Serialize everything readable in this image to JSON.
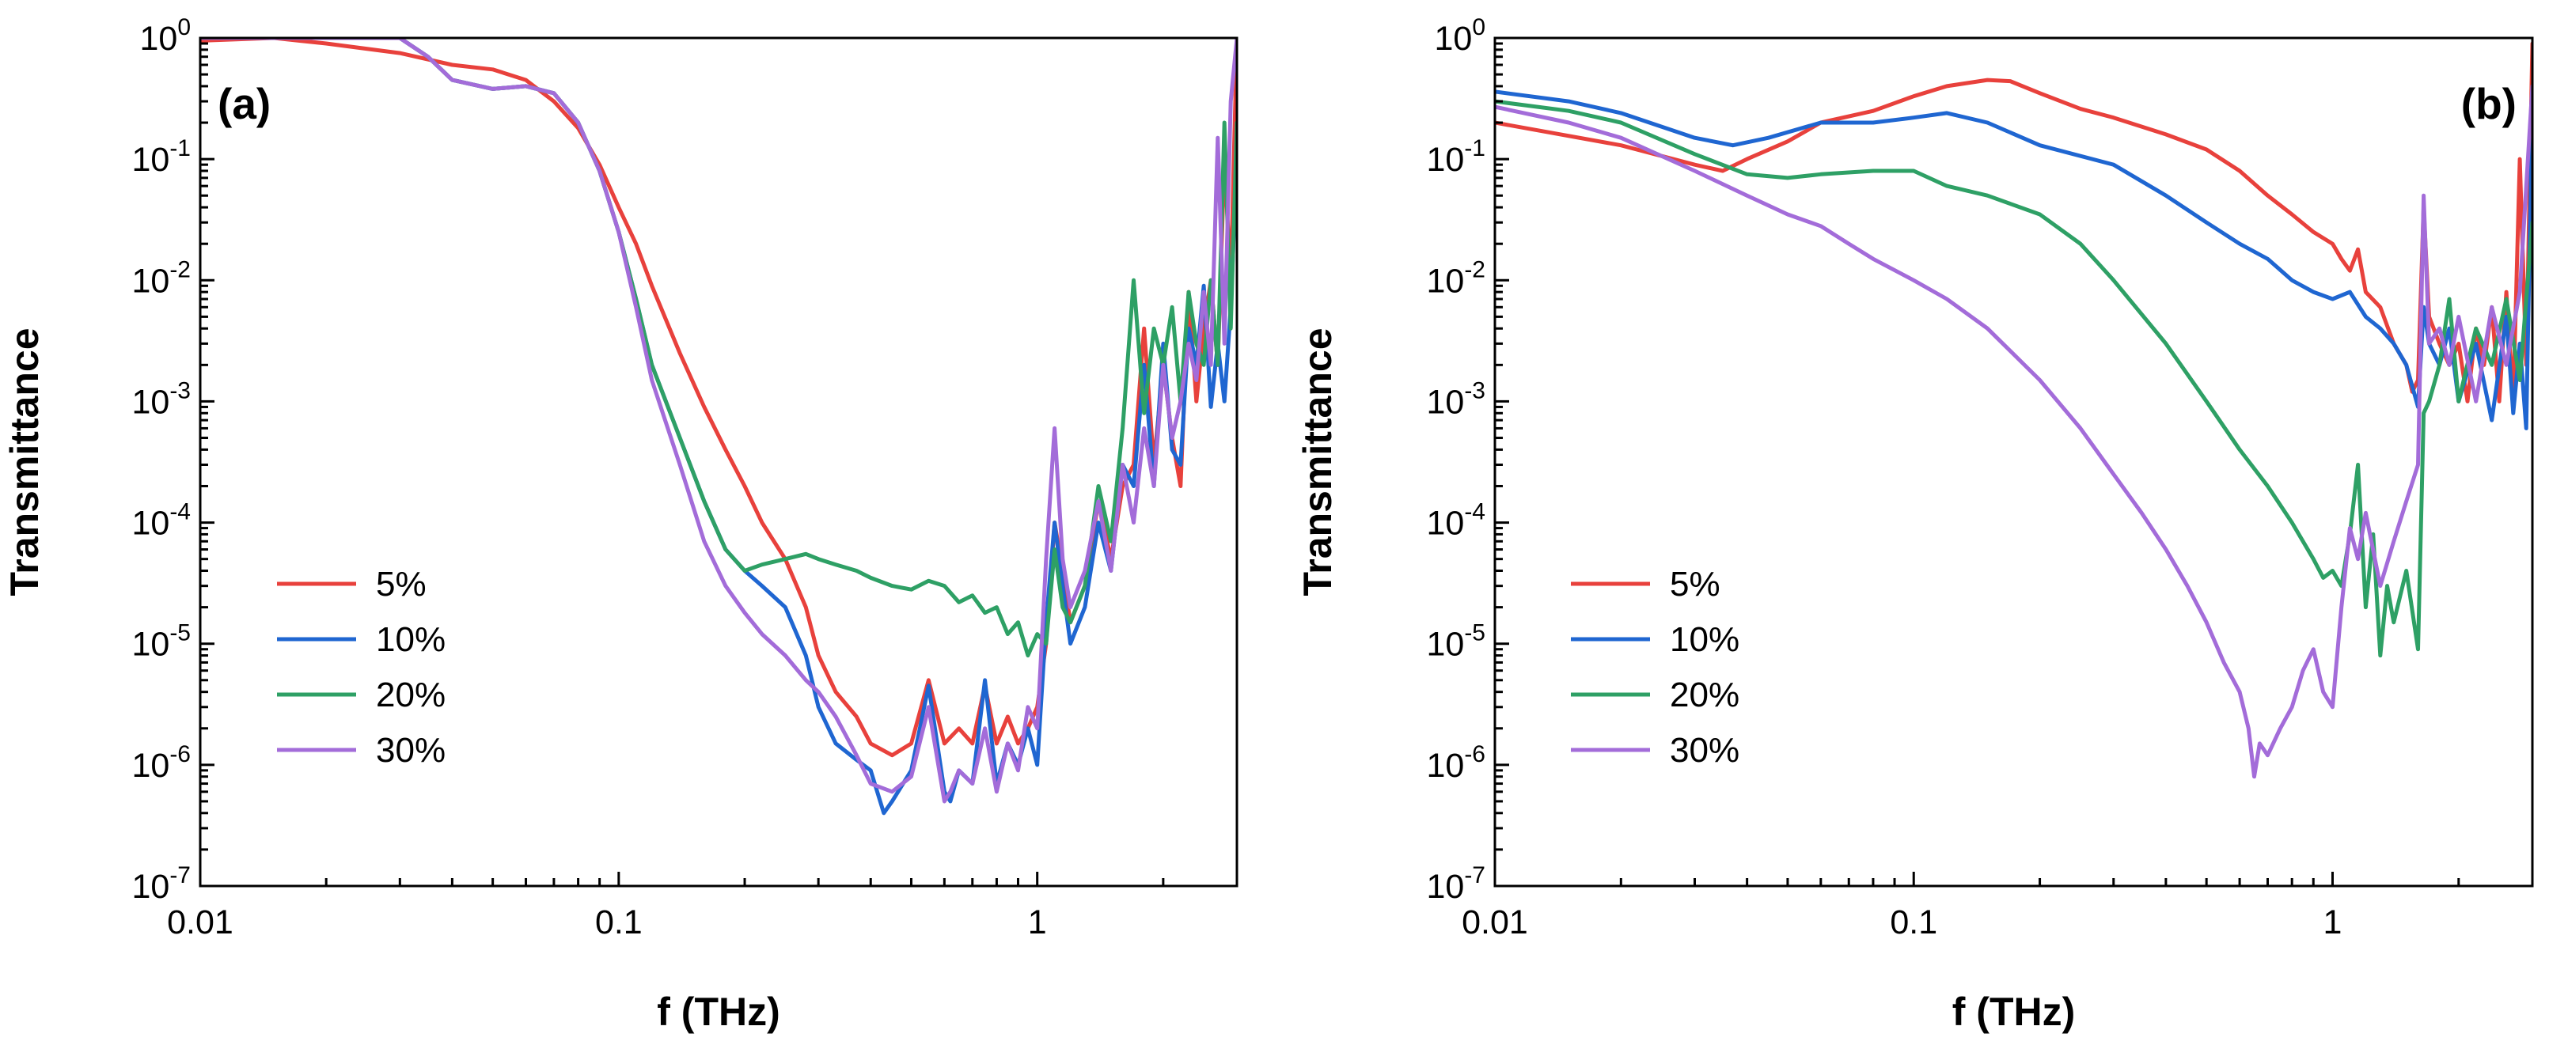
{
  "chart_data": [
    {
      "type": "line",
      "panel_label": "(a)",
      "xlabel": "f (THz)",
      "ylabel": "Transmittance",
      "xscale": "log",
      "yscale": "log",
      "xlim": [
        0.01,
        3
      ],
      "ylim": [
        1e-07,
        1
      ],
      "xticks": [
        {
          "value": 0.01,
          "label": "0.01"
        },
        {
          "value": 0.1,
          "label": "0.1"
        },
        {
          "value": 1,
          "label": "1"
        }
      ],
      "yticks": [
        {
          "value": 1,
          "base": "10",
          "exp": "0"
        },
        {
          "value": 0.1,
          "base": "10",
          "exp": "-1"
        },
        {
          "value": 0.01,
          "base": "10",
          "exp": "-2"
        },
        {
          "value": 0.001,
          "base": "10",
          "exp": "-3"
        },
        {
          "value": 0.0001,
          "base": "10",
          "exp": "-4"
        },
        {
          "value": 1e-05,
          "base": "10",
          "exp": "-5"
        },
        {
          "value": 1e-06,
          "base": "10",
          "exp": "-6"
        },
        {
          "value": 1e-07,
          "base": "10",
          "exp": "-7"
        }
      ],
      "legend_position": "lower-left",
      "series": [
        {
          "name": "5%",
          "color": "#e8413c",
          "x": [
            0.01,
            0.015,
            0.02,
            0.03,
            0.04,
            0.05,
            0.06,
            0.07,
            0.08,
            0.09,
            0.1,
            0.11,
            0.12,
            0.14,
            0.16,
            0.18,
            0.2,
            0.22,
            0.25,
            0.28,
            0.3,
            0.33,
            0.37,
            0.4,
            0.45,
            0.5,
            0.55,
            0.6,
            0.65,
            0.7,
            0.75,
            0.8,
            0.85,
            0.9,
            0.95,
            1.0,
            1.05,
            1.1,
            1.15,
            1.2,
            1.3,
            1.4,
            1.5,
            1.6,
            1.7,
            1.8,
            1.9,
            2.0,
            2.1,
            2.2,
            2.3,
            2.4,
            2.5,
            2.6,
            2.7,
            2.8,
            2.9,
            3.0
          ],
          "y": [
            0.95,
            1.0,
            0.9,
            0.75,
            0.6,
            0.55,
            0.45,
            0.3,
            0.18,
            0.09,
            0.04,
            0.02,
            0.009,
            0.0025,
            0.0009,
            0.0004,
            0.0002,
            0.0001,
            5e-05,
            2e-05,
            8e-06,
            4e-06,
            2.5e-06,
            1.5e-06,
            1.2e-06,
            1.5e-06,
            5e-06,
            1.5e-06,
            2e-06,
            1.5e-06,
            4.5e-06,
            1.5e-06,
            2.5e-06,
            1.5e-06,
            2e-06,
            3e-06,
            1e-05,
            0.0001,
            4e-05,
            1.5e-05,
            3e-05,
            0.00015,
            5e-05,
            0.0002,
            0.0003,
            0.004,
            0.0003,
            0.002,
            0.0005,
            0.0002,
            0.008,
            0.001,
            0.004,
            0.01,
            0.002,
            0.1,
            0.01,
            1.0
          ]
        },
        {
          "name": "10%",
          "color": "#1f66d1",
          "x": [
            0.01,
            0.015,
            0.02,
            0.025,
            0.03,
            0.035,
            0.04,
            0.05,
            0.06,
            0.07,
            0.08,
            0.09,
            0.1,
            0.11,
            0.12,
            0.14,
            0.16,
            0.18,
            0.2,
            0.22,
            0.25,
            0.28,
            0.3,
            0.33,
            0.37,
            0.4,
            0.43,
            0.45,
            0.5,
            0.55,
            0.6,
            0.62,
            0.65,
            0.7,
            0.75,
            0.8,
            0.85,
            0.9,
            0.95,
            1.0,
            1.05,
            1.1,
            1.15,
            1.2,
            1.3,
            1.4,
            1.5,
            1.6,
            1.7,
            1.8,
            1.9,
            2.0,
            2.1,
            2.2,
            2.3,
            2.4,
            2.5,
            2.6,
            2.7,
            2.8,
            2.9,
            3.0
          ],
          "y": [
            1.0,
            1.0,
            1.0,
            1.0,
            1.0,
            0.7,
            0.45,
            0.38,
            0.4,
            0.35,
            0.2,
            0.08,
            0.025,
            0.007,
            0.002,
            0.0005,
            0.00015,
            6e-05,
            4e-05,
            3e-05,
            2e-05,
            8e-06,
            3e-06,
            1.5e-06,
            1.1e-06,
            9e-07,
            4e-07,
            5e-07,
            9e-07,
            4.5e-06,
            6e-07,
            5e-07,
            9e-07,
            7e-07,
            5e-06,
            7e-07,
            1.5e-06,
            1e-06,
            2e-06,
            1e-06,
            1.5e-05,
            0.0001,
            3e-05,
            1e-05,
            2e-05,
            0.0001,
            4e-05,
            0.0003,
            0.0002,
            0.002,
            0.0002,
            0.003,
            0.0004,
            0.0003,
            0.004,
            0.002,
            0.009,
            0.0009,
            0.003,
            0.001,
            0.006,
            0.1
          ]
        },
        {
          "name": "20%",
          "color": "#2ea065",
          "x": [
            0.01,
            0.015,
            0.02,
            0.025,
            0.03,
            0.035,
            0.04,
            0.05,
            0.06,
            0.07,
            0.08,
            0.09,
            0.1,
            0.11,
            0.12,
            0.14,
            0.16,
            0.18,
            0.2,
            0.22,
            0.25,
            0.28,
            0.3,
            0.33,
            0.37,
            0.4,
            0.45,
            0.5,
            0.55,
            0.6,
            0.65,
            0.7,
            0.75,
            0.8,
            0.85,
            0.9,
            0.95,
            1.0,
            1.05,
            1.1,
            1.15,
            1.2,
            1.3,
            1.4,
            1.5,
            1.6,
            1.7,
            1.8,
            1.9,
            2.0,
            2.1,
            2.2,
            2.3,
            2.4,
            2.5,
            2.6,
            2.7,
            2.8,
            2.9,
            3.0
          ],
          "y": [
            1.0,
            1.0,
            1.0,
            1.0,
            1.0,
            0.7,
            0.45,
            0.38,
            0.4,
            0.35,
            0.2,
            0.08,
            0.025,
            0.007,
            0.002,
            0.0005,
            0.00015,
            6e-05,
            4e-05,
            4.5e-05,
            5e-05,
            5.5e-05,
            5e-05,
            4.5e-05,
            4e-05,
            3.5e-05,
            3e-05,
            2.8e-05,
            3.3e-05,
            3e-05,
            2.2e-05,
            2.5e-05,
            1.8e-05,
            2e-05,
            1.2e-05,
            1.5e-05,
            8e-06,
            1.2e-05,
            1e-05,
            6e-05,
            2e-05,
            1.5e-05,
            3e-05,
            0.0002,
            7e-05,
            0.0006,
            0.01,
            0.0008,
            0.004,
            0.002,
            0.006,
            0.001,
            0.008,
            0.003,
            0.002,
            0.01,
            0.002,
            0.2,
            0.004,
            0.2
          ]
        },
        {
          "name": "30%",
          "color": "#a36cd9",
          "x": [
            0.01,
            0.015,
            0.02,
            0.025,
            0.03,
            0.035,
            0.04,
            0.05,
            0.06,
            0.07,
            0.08,
            0.09,
            0.1,
            0.11,
            0.12,
            0.14,
            0.16,
            0.18,
            0.2,
            0.22,
            0.25,
            0.28,
            0.3,
            0.33,
            0.37,
            0.4,
            0.45,
            0.5,
            0.55,
            0.6,
            0.62,
            0.65,
            0.7,
            0.75,
            0.8,
            0.85,
            0.9,
            0.95,
            1.0,
            1.05,
            1.1,
            1.15,
            1.2,
            1.3,
            1.4,
            1.5,
            1.6,
            1.7,
            1.8,
            1.9,
            2.0,
            2.1,
            2.2,
            2.3,
            2.4,
            2.5,
            2.6,
            2.7,
            2.8,
            2.9,
            3.0
          ],
          "y": [
            1.0,
            1.0,
            1.0,
            1.0,
            1.0,
            0.7,
            0.45,
            0.38,
            0.4,
            0.35,
            0.2,
            0.08,
            0.025,
            0.006,
            0.0015,
            0.0003,
            7e-05,
            3e-05,
            1.8e-05,
            1.2e-05,
            8e-06,
            5e-06,
            4e-06,
            2.5e-06,
            1.2e-06,
            7e-07,
            6e-07,
            8e-07,
            3e-06,
            5e-07,
            6e-07,
            9e-07,
            7e-07,
            2e-06,
            6e-07,
            1.5e-06,
            9e-07,
            3e-06,
            2e-06,
            5e-05,
            0.0006,
            5e-05,
            2e-05,
            4e-05,
            0.00015,
            4e-05,
            0.0003,
            0.0001,
            0.0006,
            0.0002,
            0.002,
            0.0005,
            0.001,
            0.003,
            0.0015,
            0.008,
            0.002,
            0.15,
            0.003,
            0.3,
            1.0
          ]
        }
      ]
    },
    {
      "type": "line",
      "panel_label": "(b)",
      "xlabel": "f (THz)",
      "ylabel": "Transmittance",
      "xscale": "log",
      "yscale": "log",
      "xlim": [
        0.01,
        3
      ],
      "ylim": [
        1e-07,
        1
      ],
      "xticks": [
        {
          "value": 0.01,
          "label": "0.01"
        },
        {
          "value": 0.1,
          "label": "0.1"
        },
        {
          "value": 1,
          "label": "1"
        }
      ],
      "yticks": [
        {
          "value": 1,
          "base": "10",
          "exp": "0"
        },
        {
          "value": 0.1,
          "base": "10",
          "exp": "-1"
        },
        {
          "value": 0.01,
          "base": "10",
          "exp": "-2"
        },
        {
          "value": 0.001,
          "base": "10",
          "exp": "-3"
        },
        {
          "value": 0.0001,
          "base": "10",
          "exp": "-4"
        },
        {
          "value": 1e-05,
          "base": "10",
          "exp": "-5"
        },
        {
          "value": 1e-06,
          "base": "10",
          "exp": "-6"
        },
        {
          "value": 1e-07,
          "base": "10",
          "exp": "-7"
        }
      ],
      "legend_position": "lower-left",
      "series": [
        {
          "name": "5%",
          "color": "#e8413c",
          "x": [
            0.01,
            0.02,
            0.03,
            0.035,
            0.04,
            0.05,
            0.06,
            0.08,
            0.1,
            0.12,
            0.15,
            0.17,
            0.2,
            0.25,
            0.3,
            0.4,
            0.5,
            0.6,
            0.7,
            0.8,
            0.9,
            1.0,
            1.05,
            1.1,
            1.15,
            1.2,
            1.3,
            1.4,
            1.5,
            1.55,
            1.6,
            1.65,
            1.7,
            1.8,
            1.9,
            2.0,
            2.1,
            2.2,
            2.3,
            2.4,
            2.5,
            2.6,
            2.7,
            2.8,
            2.9,
            3.0
          ],
          "y": [
            0.2,
            0.13,
            0.09,
            0.08,
            0.1,
            0.14,
            0.2,
            0.25,
            0.33,
            0.4,
            0.45,
            0.44,
            0.35,
            0.26,
            0.22,
            0.16,
            0.12,
            0.08,
            0.05,
            0.035,
            0.025,
            0.02,
            0.015,
            0.012,
            0.018,
            0.008,
            0.006,
            0.003,
            0.002,
            0.0012,
            0.0015,
            0.04,
            0.005,
            0.003,
            0.002,
            0.003,
            0.001,
            0.004,
            0.002,
            0.006,
            0.001,
            0.008,
            0.001,
            0.1,
            0.002,
            0.9
          ]
        },
        {
          "name": "10%",
          "color": "#1f66d1",
          "x": [
            0.01,
            0.015,
            0.02,
            0.03,
            0.037,
            0.045,
            0.06,
            0.08,
            0.1,
            0.12,
            0.15,
            0.2,
            0.3,
            0.4,
            0.5,
            0.6,
            0.7,
            0.8,
            0.9,
            1.0,
            1.1,
            1.2,
            1.3,
            1.4,
            1.5,
            1.6,
            1.65,
            1.7,
            1.8,
            1.9,
            2.0,
            2.2,
            2.4,
            2.6,
            2.7,
            2.8,
            2.9,
            3.0
          ],
          "y": [
            0.36,
            0.3,
            0.24,
            0.15,
            0.13,
            0.15,
            0.2,
            0.2,
            0.22,
            0.24,
            0.2,
            0.13,
            0.09,
            0.05,
            0.03,
            0.02,
            0.015,
            0.01,
            0.008,
            0.007,
            0.008,
            0.005,
            0.004,
            0.003,
            0.002,
            0.0009,
            0.006,
            0.003,
            0.002,
            0.004,
            0.001,
            0.003,
            0.0007,
            0.005,
            0.0008,
            0.003,
            0.0006,
            0.3
          ]
        },
        {
          "name": "20%",
          "color": "#2ea065",
          "x": [
            0.01,
            0.015,
            0.02,
            0.03,
            0.04,
            0.05,
            0.06,
            0.08,
            0.1,
            0.12,
            0.15,
            0.2,
            0.25,
            0.3,
            0.4,
            0.5,
            0.6,
            0.7,
            0.8,
            0.9,
            0.95,
            1.0,
            1.05,
            1.1,
            1.15,
            1.2,
            1.25,
            1.3,
            1.35,
            1.4,
            1.5,
            1.6,
            1.65,
            1.7,
            1.8,
            1.9,
            2.0,
            2.2,
            2.4,
            2.6,
            2.8,
            3.0
          ],
          "y": [
            0.3,
            0.25,
            0.2,
            0.11,
            0.075,
            0.07,
            0.075,
            0.08,
            0.08,
            0.06,
            0.05,
            0.035,
            0.02,
            0.01,
            0.003,
            0.001,
            0.0004,
            0.0002,
            0.0001,
            5e-05,
            3.5e-05,
            4e-05,
            3e-05,
            8e-05,
            0.0003,
            2e-05,
            8e-05,
            8e-06,
            3e-05,
            1.5e-05,
            4e-05,
            9e-06,
            0.0008,
            0.001,
            0.002,
            0.007,
            0.001,
            0.004,
            0.002,
            0.007,
            0.0015,
            0.03
          ]
        },
        {
          "name": "30%",
          "color": "#a36cd9",
          "x": [
            0.01,
            0.015,
            0.02,
            0.03,
            0.04,
            0.05,
            0.06,
            0.07,
            0.08,
            0.1,
            0.12,
            0.15,
            0.2,
            0.25,
            0.3,
            0.35,
            0.4,
            0.45,
            0.5,
            0.55,
            0.6,
            0.63,
            0.65,
            0.67,
            0.7,
            0.75,
            0.8,
            0.85,
            0.9,
            0.95,
            1.0,
            1.05,
            1.1,
            1.15,
            1.2,
            1.3,
            1.4,
            1.5,
            1.6,
            1.65,
            1.7,
            1.8,
            1.9,
            2.0,
            2.2,
            2.4,
            2.6,
            2.8,
            3.0
          ],
          "y": [
            0.27,
            0.2,
            0.15,
            0.08,
            0.05,
            0.035,
            0.028,
            0.02,
            0.015,
            0.01,
            0.007,
            0.004,
            0.0015,
            0.0006,
            0.00025,
            0.00012,
            6e-05,
            3e-05,
            1.5e-05,
            7e-06,
            4e-06,
            2e-06,
            8e-07,
            1.5e-06,
            1.2e-06,
            2e-06,
            3e-06,
            6e-06,
            9e-06,
            4e-06,
            3e-06,
            2e-05,
            9e-05,
            5e-05,
            0.00012,
            3e-05,
            7e-05,
            0.00015,
            0.0003,
            0.05,
            0.003,
            0.004,
            0.002,
            0.005,
            0.001,
            0.006,
            0.002,
            0.008,
            0.4
          ]
        }
      ]
    }
  ]
}
